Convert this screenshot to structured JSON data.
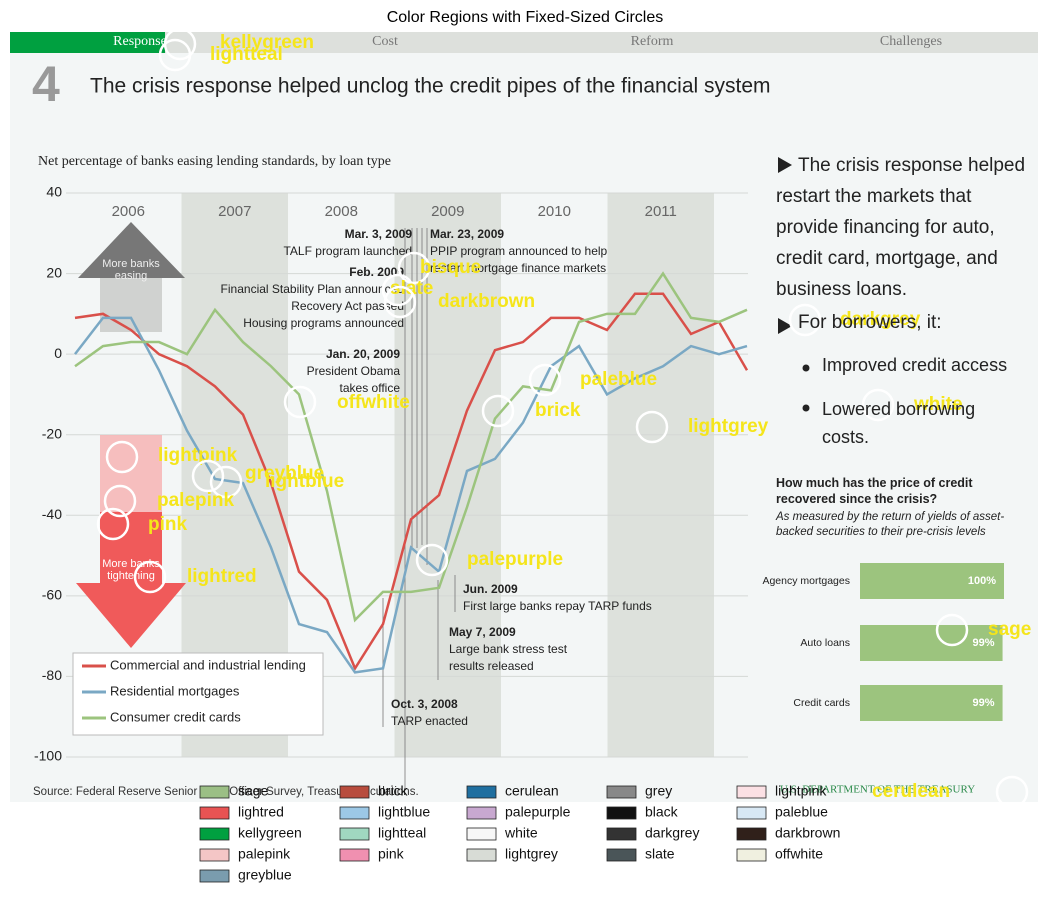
{
  "title": "Color Regions with Fixed-Sized Circles",
  "nav": [
    "Response",
    "Cost",
    "Reform",
    "Challenges"
  ],
  "heading_number": "4",
  "heading": "The crisis response helped unclog the credit pipes of the financial system",
  "chart_data": {
    "type": "line",
    "title": "Net percentage of banks easing lending standards, by loan type",
    "year_labels": [
      "2006",
      "2007",
      "2008",
      "2009",
      "2010",
      "2011"
    ],
    "ylim": [
      -100,
      40
    ],
    "yticks": [
      -100,
      -80,
      -60,
      -40,
      -20,
      0,
      20,
      40
    ],
    "grid": true,
    "series": [
      {
        "name": "Commercial and industrial lending",
        "color": "#d9504a",
        "values": [
          9,
          10,
          6,
          0,
          -3,
          -8,
          -15,
          -32,
          -54,
          -61,
          -78,
          -67,
          -41,
          -35,
          -14,
          1,
          3,
          9,
          9,
          6,
          15,
          15,
          5,
          8,
          -4
        ]
      },
      {
        "name": "Residential mortgages",
        "color": "#7aa8c4",
        "values": [
          0,
          9,
          9,
          -4,
          -19,
          -31,
          -32,
          -48,
          -67,
          -69,
          -79,
          -78,
          -48,
          -54,
          -29,
          -26,
          -17,
          -3,
          2,
          -10,
          -6,
          -3,
          2,
          0,
          2
        ]
      },
      {
        "name": "Consumer credit cards",
        "color": "#9cc47e",
        "values": [
          -3,
          2,
          3,
          3,
          0,
          11,
          3,
          -3,
          -10,
          -34,
          -66,
          -59,
          -59,
          -58,
          -38,
          -16,
          -8,
          -9,
          8,
          10,
          10,
          20,
          9,
          8,
          11
        ]
      }
    ],
    "arrows": [
      "More banks easing",
      "More banks tightening"
    ],
    "annotations": [
      {
        "lines": [
          "Mar. 3, 2009",
          "TALF program launched"
        ]
      },
      {
        "lines": [
          "Mar. 23, 2009",
          "PPIP program announced to help",
          "restart mortgage finance markets"
        ]
      },
      {
        "lines": [
          "Feb. 2009",
          "Financial Stability Plan announced",
          "Recovery Act passed",
          "Housing programs announced"
        ]
      },
      {
        "lines": [
          "Jan. 20, 2009",
          "President Obama",
          "takes office"
        ]
      },
      {
        "lines": [
          "Jun. 2009",
          "First large banks repay TARP funds"
        ]
      },
      {
        "lines": [
          "May 7, 2009",
          "Large bank stress test",
          "results released"
        ]
      },
      {
        "lines": [
          "Oct. 3, 2008",
          "TARP enacted"
        ]
      }
    ],
    "source": "Source: Federal Reserve Senior Loan Officer Survey, Treasury calculations."
  },
  "sidebar": {
    "intro": "The crisis response helped restart the markets that provide financing for auto, credit card, mortgage, and business loans.",
    "lead": "For borrowers, it:",
    "bullets": [
      "Improved credit access",
      "Lowered borrowing costs."
    ]
  },
  "recovery": {
    "title": "How much has the price of credit recovered since the crisis?",
    "subtitle": "As measured by the return of yields of asset-backed securities to their pre-crisis levels",
    "categories": [
      "Agency mortgages",
      "Auto loans",
      "Credit cards"
    ],
    "values": [
      100,
      99,
      99
    ],
    "value_labels": [
      "100%",
      "99%",
      "99%"
    ],
    "xlim": [
      0,
      100
    ],
    "color": "#9cc47e"
  },
  "footer": "U.S. DEPARTMENT OF THE TREASURY",
  "circles": [
    "kellygreen",
    "lightteal",
    "bisque",
    "slate",
    "darkbrown",
    "darkgrey",
    "paleblue",
    "offwhite",
    "brick",
    "white",
    "lightgrey",
    "lightpink",
    "greyblue",
    "lightblue",
    "palepink",
    "pink",
    "palepurple",
    "lightred",
    "sage",
    "cerulean"
  ],
  "legend": [
    {
      "name": "sage",
      "color": "#9bbf85"
    },
    {
      "name": "lightred",
      "color": "#e85353"
    },
    {
      "name": "kellygreen",
      "color": "#00a040"
    },
    {
      "name": "palepink",
      "color": "#f4c6c6"
    },
    {
      "name": "greyblue",
      "color": "#7a9cae"
    },
    {
      "name": "brick",
      "color": "#b84c3d"
    },
    {
      "name": "lightblue",
      "color": "#9cc8e6"
    },
    {
      "name": "lightteal",
      "color": "#a0d8c0"
    },
    {
      "name": "pink",
      "color": "#f090b0"
    },
    {
      "name": "cerulean",
      "color": "#1f6fa0"
    },
    {
      "name": "palepurple",
      "color": "#c8a8d0"
    },
    {
      "name": "white",
      "color": "#f7f7f7"
    },
    {
      "name": "lightgrey",
      "color": "#d8dcd6"
    },
    {
      "name": "grey",
      "color": "#888888"
    },
    {
      "name": "black",
      "color": "#111111"
    },
    {
      "name": "darkgrey",
      "color": "#333333"
    },
    {
      "name": "slate",
      "color": "#4a5558"
    },
    {
      "name": "lightpink",
      "color": "#fbe0e4"
    },
    {
      "name": "paleblue",
      "color": "#d8e8f4"
    },
    {
      "name": "darkbrown",
      "color": "#30201a"
    },
    {
      "name": "offwhite",
      "color": "#f0f0e0"
    }
  ]
}
